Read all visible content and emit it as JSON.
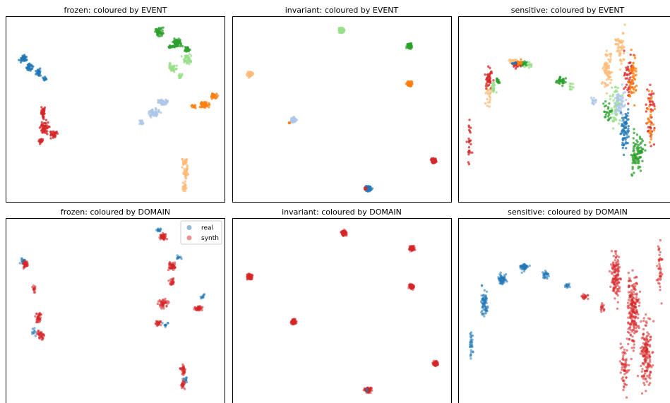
{
  "chart_data": [
    {
      "type": "scatter",
      "panel": "frozen-event",
      "title": "frozen: coloured by EVENT",
      "clusters": [
        {
          "color": "#1f77b4",
          "pts": [
            [
              8,
              83,
              4,
              4,
              45
            ],
            [
              11,
              95,
              4,
              4,
              30
            ],
            [
              15,
              103,
              3,
              4,
              25
            ],
            [
              18,
              112,
              2,
              3,
              10
            ]
          ]
        },
        {
          "color": "#d62728",
          "pts": [
            [
              17,
              160,
              3,
              6,
              35
            ],
            [
              18,
              180,
              5,
              7,
              55
            ],
            [
              22,
              190,
              5,
              4,
              30
            ],
            [
              16,
              200,
              3,
              3,
              20
            ]
          ]
        },
        {
          "color": "#2ca02c",
          "pts": [
            [
              70,
              45,
              5,
              5,
              45
            ],
            [
              78,
              60,
              6,
              6,
              55
            ],
            [
              76,
              66,
              4,
              2,
              15
            ],
            [
              83,
              70,
              4,
              3,
              20
            ]
          ]
        },
        {
          "color": "#98df8a",
          "pts": [
            [
              83,
              84,
              6,
              6,
              40
            ],
            [
              76,
              96,
              5,
              5,
              35
            ],
            [
              80,
              108,
              3,
              3,
              15
            ]
          ]
        },
        {
          "color": "#aec7e8",
          "pts": [
            [
              72,
              145,
              5,
              4,
              40
            ],
            [
              68,
              160,
              7,
              6,
              55
            ],
            [
              62,
              173,
              3,
              3,
              15
            ]
          ]
        },
        {
          "color": "#ff7f0e",
          "pts": [
            [
              91,
              148,
              6,
              4,
              50
            ],
            [
              95,
              136,
              4,
              4,
              25
            ],
            [
              86,
              151,
              3,
              2,
              15
            ]
          ]
        },
        {
          "color": "#ffbb78",
          "pts": [
            [
              82,
              230,
              4,
              4,
              25
            ],
            [
              82,
              245,
              4,
              7,
              40
            ],
            [
              82,
              265,
              3,
              4,
              25
            ]
          ]
        }
      ]
    },
    {
      "type": "scatter",
      "panel": "invariant-event",
      "title": "invariant: coloured by EVENT",
      "clusters": [
        {
          "color": "#98df8a",
          "pts": [
            [
              50,
              43,
              3,
              3,
              90
            ]
          ]
        },
        {
          "color": "#2ca02c",
          "pts": [
            [
              81,
              65,
              3,
              3,
              90
            ]
          ]
        },
        {
          "color": "#ffbb78",
          "pts": [
            [
              8,
              105,
              3,
              3,
              90
            ]
          ]
        },
        {
          "color": "#ff7f0e",
          "pts": [
            [
              81,
              119,
              3,
              3,
              90
            ]
          ]
        },
        {
          "color": "#aec7e8",
          "pts": [
            [
              28,
              170,
              3,
              3,
              85
            ]
          ]
        },
        {
          "color": "#ff7f0e",
          "pts": [
            [
              26,
              174,
              1,
              1,
              5
            ]
          ]
        },
        {
          "color": "#d62728",
          "pts": [
            [
              92,
              228,
              3,
              3,
              90
            ]
          ]
        },
        {
          "color": "#1f77b4",
          "pts": [
            [
              62,
              267,
              4,
              3,
              85
            ]
          ]
        },
        {
          "color": "#d62728",
          "pts": [
            [
              61,
              267,
              2,
              2,
              6
            ]
          ]
        }
      ]
    },
    {
      "type": "scatter",
      "panel": "sensitive-event",
      "title": "sensitive: coloured by EVENT",
      "clusters": [
        {
          "color": "#ffbb78",
          "pts": [
            [
              14,
              135,
              4,
              14,
              25
            ],
            [
              25,
              87,
              5,
              3,
              20
            ],
            [
              68,
              100,
              6,
              25,
              70
            ],
            [
              74,
              70,
              5,
              20,
              50
            ]
          ]
        },
        {
          "color": "#d62728",
          "pts": [
            [
              5,
              200,
              3,
              25,
              25
            ],
            [
              14,
              110,
              4,
              12,
              40
            ],
            [
              27,
              92,
              5,
              4,
              30
            ],
            [
              78,
              110,
              6,
              30,
              50
            ],
            [
              88,
              160,
              5,
              30,
              40
            ]
          ]
        },
        {
          "color": "#98df8a",
          "pts": [
            [
              16,
              125,
              3,
              8,
              20
            ],
            [
              32,
              92,
              5,
              4,
              20
            ],
            [
              52,
              125,
              4,
              6,
              10
            ],
            [
              72,
              150,
              7,
              30,
              60
            ]
          ]
        },
        {
          "color": "#2ca02c",
          "pts": [
            [
              18,
              115,
              3,
              4,
              15
            ],
            [
              30,
              90,
              5,
              3,
              20
            ],
            [
              47,
              115,
              6,
              5,
              35
            ],
            [
              68,
              158,
              5,
              12,
              25
            ],
            [
              82,
              220,
              8,
              25,
              90
            ]
          ]
        },
        {
          "color": "#ff7f0e",
          "pts": [
            [
              28,
              89,
              4,
              3,
              15
            ],
            [
              80,
              110,
              5,
              30,
              50
            ],
            [
              88,
              170,
              4,
              30,
              30
            ]
          ]
        },
        {
          "color": "#aec7e8",
          "pts": [
            [
              62,
              143,
              3,
              5,
              15
            ],
            [
              74,
              150,
              6,
              22,
              50
            ]
          ]
        },
        {
          "color": "#1f77b4",
          "pts": [
            [
              26,
              90,
              3,
              2,
              8
            ],
            [
              76,
              180,
              6,
              25,
              70
            ]
          ]
        }
      ]
    },
    {
      "type": "scatter",
      "panel": "frozen-domain",
      "title": "frozen: coloured by DOMAIN",
      "legend": [
        {
          "label": "real",
          "color": "#1f77b4"
        },
        {
          "label": "synth",
          "color": "#d62728"
        }
      ],
      "legend_position": "top-right",
      "clusters": [
        {
          "color": "#1f77b4",
          "pts": [
            [
              8,
              370,
              3,
              3,
              15
            ],
            [
              13,
              470,
              3,
              4,
              10
            ],
            [
              70,
              325,
              3,
              3,
              12
            ],
            [
              79,
              365,
              3,
              3,
              10
            ],
            [
              90,
              420,
              3,
              3,
              10
            ],
            [
              73,
              460,
              3,
              3,
              10
            ],
            [
              82,
              540,
              3,
              5,
              12
            ]
          ]
        },
        {
          "color": "#d62728",
          "pts": [
            [
              9,
              375,
              3,
              4,
              35
            ],
            [
              13,
              410,
              2,
              5,
              15
            ],
            [
              15,
              450,
              3,
              6,
              40
            ],
            [
              16,
              475,
              4,
              6,
              35
            ],
            [
              72,
              335,
              4,
              4,
              45
            ],
            [
              76,
              378,
              5,
              5,
              50
            ],
            [
              76,
              400,
              3,
              4,
              25
            ],
            [
              72,
              430,
              5,
              5,
              45
            ],
            [
              88,
              437,
              5,
              3,
              40
            ],
            [
              70,
              458,
              4,
              3,
              25
            ],
            [
              81,
              525,
              4,
              6,
              35
            ],
            [
              81,
              545,
              3,
              5,
              25
            ]
          ]
        }
      ]
    },
    {
      "type": "scatter",
      "panel": "invariant-domain",
      "title": "invariant: coloured by DOMAIN",
      "clusters": [
        {
          "color": "#d62728",
          "pts": [
            [
              51,
              330,
              3,
              3,
              95
            ],
            [
              82,
              352,
              3,
              3,
              95
            ],
            [
              8,
              392,
              3,
              3,
              95
            ],
            [
              82,
              406,
              3,
              3,
              95
            ],
            [
              28,
              456,
              3,
              3,
              95
            ],
            [
              93,
              515,
              3,
              3,
              95
            ],
            [
              62,
              553,
              4,
              3,
              95
            ]
          ]
        },
        {
          "color": "#1f77b4",
          "pts": [
            [
              62,
              553,
              2,
              2,
              4
            ]
          ]
        }
      ]
    },
    {
      "type": "scatter",
      "panel": "sensitive-domain",
      "title": "sensitive: coloured by DOMAIN",
      "clusters": [
        {
          "color": "#1f77b4",
          "pts": [
            [
              6,
              490,
              2,
              15,
              30
            ],
            [
              12,
              430,
              4,
              18,
              70
            ],
            [
              20,
              395,
              5,
              6,
              55
            ],
            [
              30,
              378,
              5,
              5,
              50
            ],
            [
              40,
              390,
              4,
              4,
              25
            ],
            [
              50,
              405,
              3,
              3,
              15
            ]
          ]
        },
        {
          "color": "#d62728",
          "pts": [
            [
              58,
              420,
              4,
              4,
              20
            ],
            [
              66,
              435,
              4,
              6,
              15
            ],
            [
              72,
              390,
              6,
              30,
              120
            ],
            [
              80,
              440,
              7,
              45,
              200
            ],
            [
              86,
              500,
              7,
              40,
              160
            ],
            [
              92,
              380,
              3,
              30,
              40
            ],
            [
              76,
              520,
              5,
              25,
              60
            ]
          ]
        }
      ]
    }
  ]
}
